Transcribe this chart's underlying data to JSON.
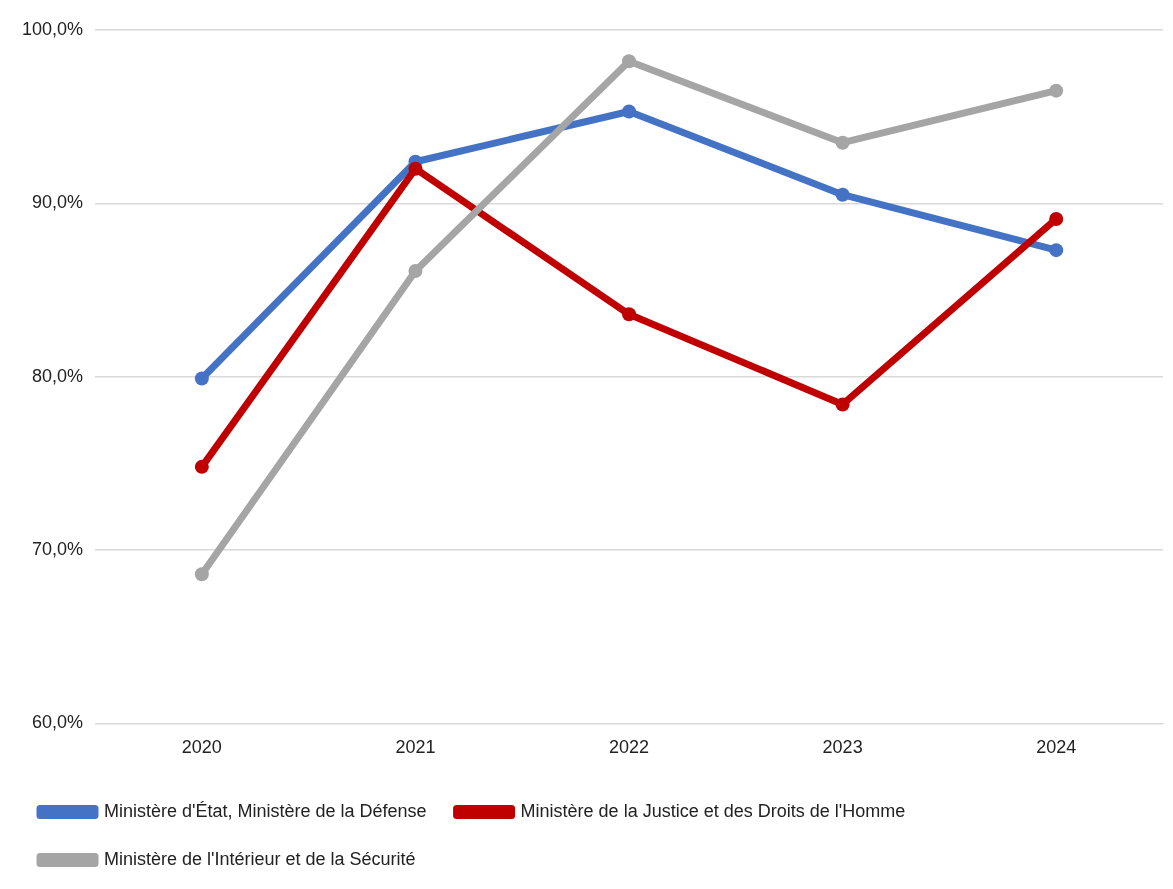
{
  "chart_data": {
    "type": "line",
    "categories": [
      "2020",
      "2021",
      "2022",
      "2023",
      "2024"
    ],
    "series": [
      {
        "name": "Ministère d'État, Ministère de la Défense",
        "color": "#4472c4",
        "values": [
          79.9,
          92.4,
          95.3,
          90.5,
          87.3
        ]
      },
      {
        "name": "Ministère de la Justice et des Droits de l'Homme",
        "color": "#c00000",
        "values": [
          74.8,
          92.0,
          83.6,
          78.4,
          89.1
        ]
      },
      {
        "name": "Ministère de l'Intérieur et de la Sécurité",
        "color": "#a5a5a5",
        "values": [
          68.6,
          86.1,
          98.2,
          93.5,
          96.5
        ]
      }
    ],
    "ylim": [
      60,
      100
    ],
    "yticks": [
      {
        "value": 60,
        "label": "60,0%"
      },
      {
        "value": 70,
        "label": "70,0%"
      },
      {
        "value": 80,
        "label": "80,0%"
      },
      {
        "value": 90,
        "label": "90,0%"
      },
      {
        "value": 100,
        "label": "100,0%"
      }
    ],
    "grid": "y",
    "legend": "bottom",
    "marker": "circle",
    "line_style": "solid"
  }
}
